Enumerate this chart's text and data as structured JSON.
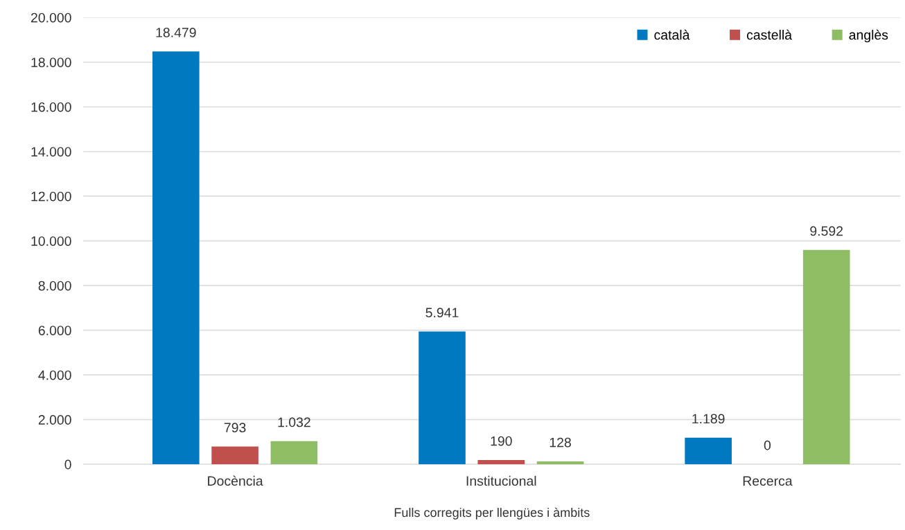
{
  "chart_data": {
    "type": "bar",
    "xlabel": "Fulls corregits per llengües i àmbits",
    "categories": [
      "Docència",
      "Institucional",
      "Recerca"
    ],
    "series": [
      {
        "name": "català",
        "color": "#0079c1",
        "values": [
          18479,
          5941,
          1189
        ],
        "value_labels": [
          "18.479",
          "5.941",
          "1.189"
        ]
      },
      {
        "name": "castellà",
        "color": "#c0504d",
        "values": [
          793,
          190,
          0
        ],
        "value_labels": [
          "793",
          "190",
          "0"
        ]
      },
      {
        "name": "anglès",
        "color": "#8fbd63",
        "values": [
          1032,
          128,
          9592
        ],
        "value_labels": [
          "1.032",
          "128",
          "9.592"
        ]
      }
    ],
    "ylim": [
      0,
      20000
    ],
    "yticks": [
      {
        "value": 0,
        "label": "0"
      },
      {
        "value": 2000,
        "label": "2.000"
      },
      {
        "value": 4000,
        "label": "4.000"
      },
      {
        "value": 6000,
        "label": "6.000"
      },
      {
        "value": 8000,
        "label": "8.000"
      },
      {
        "value": 10000,
        "label": "10.000"
      },
      {
        "value": 12000,
        "label": "12.000"
      },
      {
        "value": 14000,
        "label": "14.000"
      },
      {
        "value": 16000,
        "label": "16.000"
      },
      {
        "value": 18000,
        "label": "18.000"
      },
      {
        "value": 20000,
        "label": "20.000"
      }
    ],
    "grid": "y",
    "legend": "top right"
  }
}
